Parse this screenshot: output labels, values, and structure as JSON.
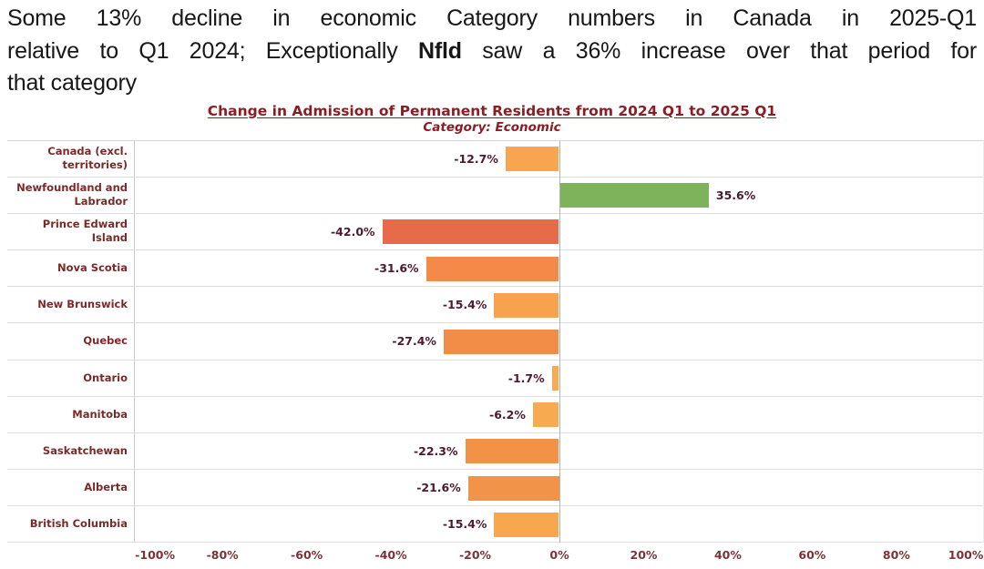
{
  "headline": {
    "line1": "Some 13% decline in economic Category numbers in Canada in 2025-Q1",
    "line2_prefix": "relative to Q1 2024; Exceptionally ",
    "line2_bold": "Nfld",
    "line2_suffix": " saw a 36% increase over that period for",
    "line3": "that category"
  },
  "chart_data": {
    "type": "bar",
    "orientation": "horizontal",
    "title": "Change in Admission of Permanent Residents from 2024 Q1 to 2025 Q1",
    "subtitle": "Category: Economic",
    "categories": [
      "Canada (excl. territories)",
      "Newfoundland and Labrador",
      "Prince Edward Island",
      "Nova Scotia",
      "New Brunswick",
      "Quebec",
      "Ontario",
      "Manitoba",
      "Saskatchewan",
      "Alberta",
      "British Columbia"
    ],
    "values": [
      -12.7,
      35.6,
      -42.0,
      -31.6,
      -15.4,
      -27.4,
      -1.7,
      -6.2,
      -22.3,
      -21.6,
      -15.4
    ],
    "value_labels": [
      "-12.7%",
      "35.6%",
      "-42.0%",
      "-31.6%",
      "-15.4%",
      "-27.4%",
      "-1.7%",
      "-6.2%",
      "-22.3%",
      "-21.6%",
      "-15.4%"
    ],
    "bar_colors": [
      "#f6a64f",
      "#7eb25b",
      "#e76b4b",
      "#f38a4a",
      "#f7a34d",
      "#f18d46",
      "#f8ab50",
      "#f8aa51",
      "#f19247",
      "#f19348",
      "#f8a74f"
    ],
    "xlim": [
      -100.8,
      100.8
    ],
    "x_ticks": [
      {
        "value": -100,
        "label": "-100%"
      },
      {
        "value": -80,
        "label": "-80%"
      },
      {
        "value": -60,
        "label": "-60%"
      },
      {
        "value": -40,
        "label": "-40%"
      },
      {
        "value": -20,
        "label": "-20%"
      },
      {
        "value": 0,
        "label": "0%"
      },
      {
        "value": 20,
        "label": "20%"
      },
      {
        "value": 40,
        "label": "40%"
      },
      {
        "value": 60,
        "label": "60%"
      },
      {
        "value": 80,
        "label": "80%"
      },
      {
        "value": 100,
        "label": "100%"
      }
    ],
    "grid": "horizontal-row-separators",
    "legend": "none",
    "colors": {
      "title": "#8b1e24",
      "axis_category_labels": "#7b2a2a",
      "value_labels": "#4b1a2e",
      "tick_labels": "#7b3338",
      "zero_line": "#b3b3b3",
      "row_separator": "#dcdcdc",
      "positive_bar": "#7eb25b",
      "most_negative_bar": "#e76b4b"
    }
  }
}
